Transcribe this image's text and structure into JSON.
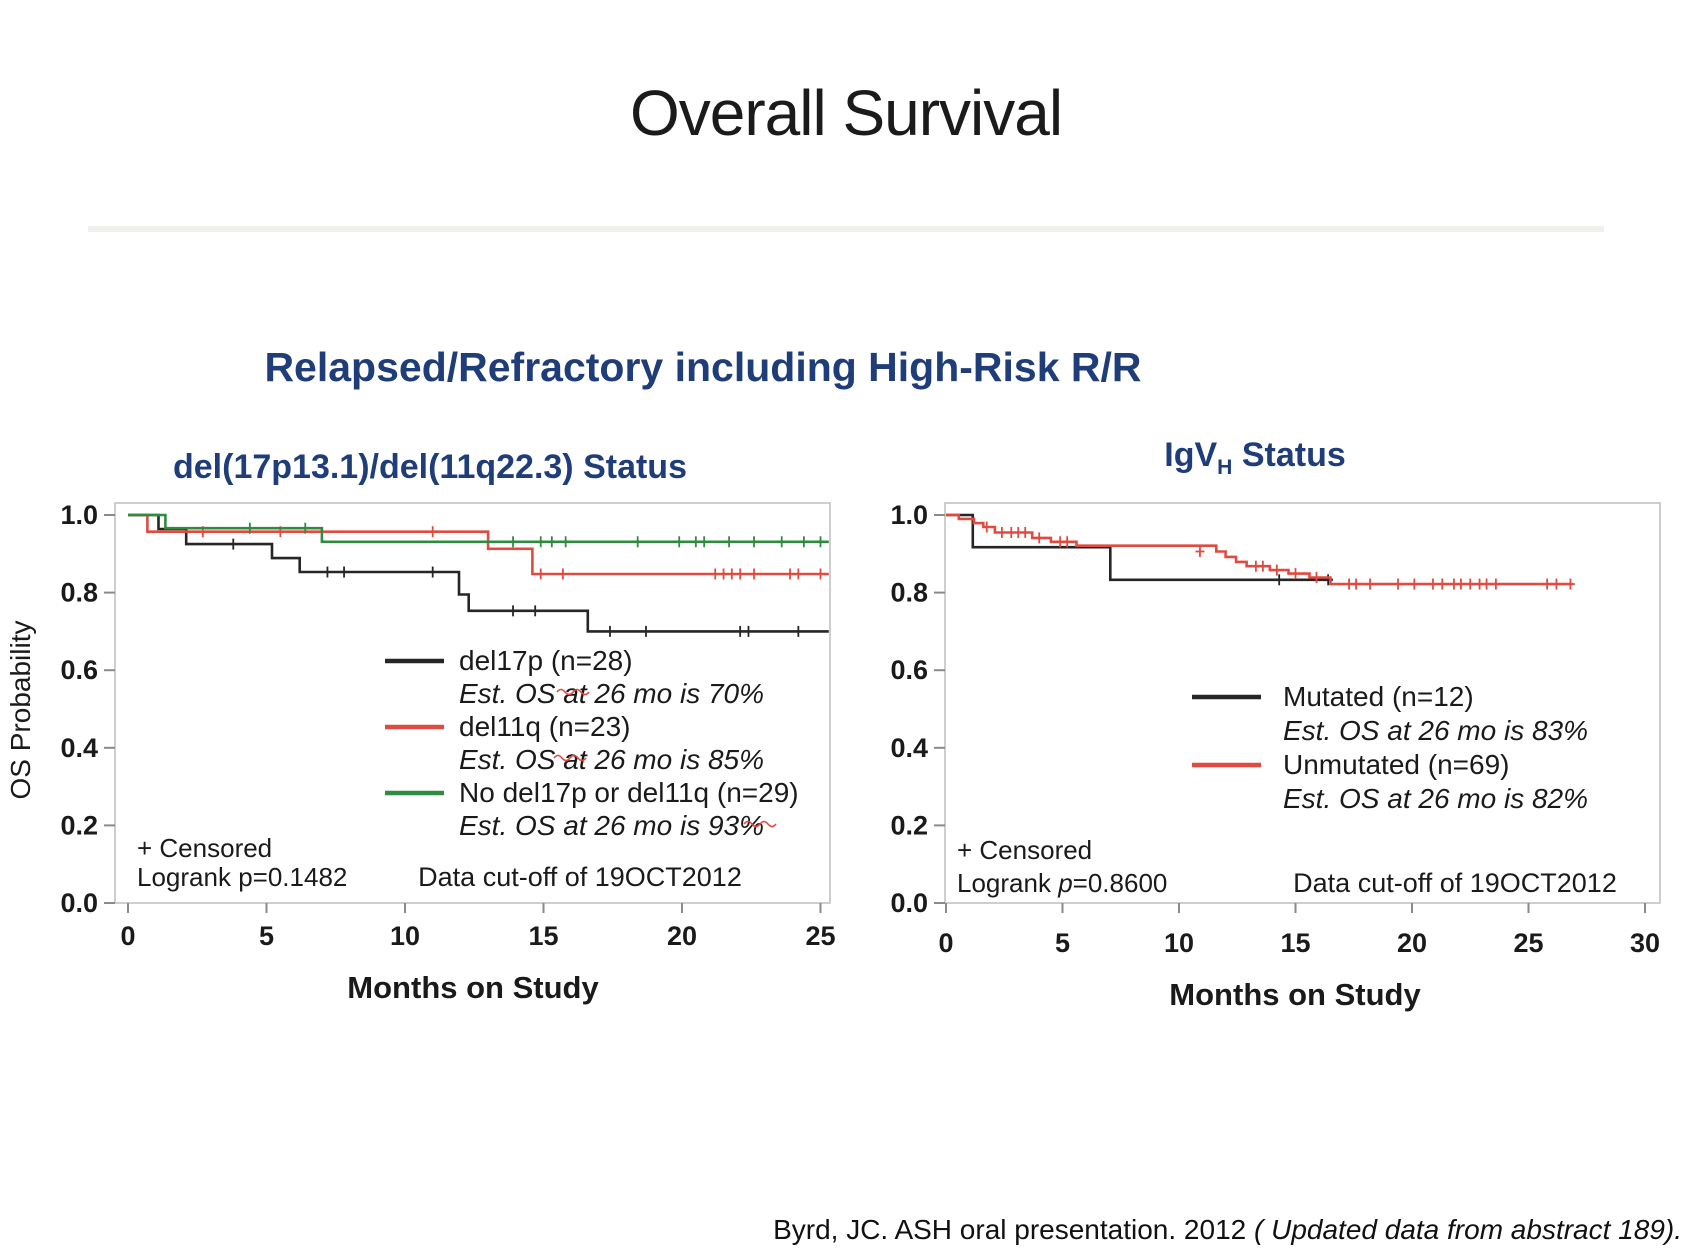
{
  "page": {
    "title": "Overall Survival",
    "header": "Relapsed/Refractory including High-Risk R/R",
    "footer": {
      "normal": "Byrd, JC. ASH oral presentation. 2012 ",
      "italic": "( Updated data from abstract 189)."
    },
    "colors": {
      "header_blue": "#1f3e79",
      "curve_black": "#262626",
      "curve_red": "#e04b41",
      "curve_green": "#2e8b3f",
      "frame_gray": "#c2c2c2",
      "tick_gray": "#8a8a8a",
      "divider": "#f1f0ec",
      "squiggle_red": "#e8453c"
    }
  },
  "chart_data": [
    {
      "type": "line",
      "variant": "kaplan-meier-step",
      "title": "del(17p13.1)/del(11q22.3) Status",
      "title_parts": {
        "pre": "del(17p13.1)/del(11q22.3) Status",
        "sub": "",
        "post": ""
      },
      "xlabel": "Months on Study",
      "ylabel": "OS Probability",
      "xlim": [
        0,
        25.8
      ],
      "ylim": [
        0,
        1.0
      ],
      "xticks": [
        0,
        5,
        10,
        15,
        20,
        25
      ],
      "ytick_labels": [
        "1.0",
        "0.8",
        "0.6",
        "0.4",
        "0.2",
        "0.0"
      ],
      "grid": false,
      "legend_position": "center-right-inside",
      "series": [
        {
          "name": "del17p (n=28)",
          "est_label": "Est. OS at 26 mo is 70%",
          "color_key": "curve_black",
          "spellcheck_squiggle": true,
          "steps": [
            [
              0,
              1.0
            ],
            [
              1.1,
              0.964
            ],
            [
              2.1,
              0.925
            ],
            [
              5.2,
              0.889
            ],
            [
              6.2,
              0.853
            ],
            [
              11.95,
              0.795
            ],
            [
              12.3,
              0.753
            ],
            [
              16.6,
              0.7
            ],
            [
              25.3,
              0.7
            ]
          ],
          "censors": [
            [
              3.8,
              0.925
            ],
            [
              7.2,
              0.853
            ],
            [
              7.8,
              0.853
            ],
            [
              11.0,
              0.853
            ],
            [
              13.9,
              0.753
            ],
            [
              14.7,
              0.753
            ],
            [
              17.4,
              0.7
            ],
            [
              18.7,
              0.7
            ],
            [
              22.1,
              0.7
            ],
            [
              22.4,
              0.7
            ],
            [
              24.2,
              0.7
            ]
          ]
        },
        {
          "name": "del11q (n=23)",
          "est_label": "Est. OS at 26 mo is 85%",
          "color_key": "curve_red",
          "spellcheck_squiggle": true,
          "steps": [
            [
              0,
              1.0
            ],
            [
              0.7,
              0.957
            ],
            [
              13.0,
              0.913
            ],
            [
              14.6,
              0.848
            ],
            [
              25.3,
              0.848
            ]
          ],
          "censors": [
            [
              2.7,
              0.957
            ],
            [
              5.5,
              0.957
            ],
            [
              11.0,
              0.957
            ],
            [
              14.9,
              0.848
            ],
            [
              15.7,
              0.848
            ],
            [
              21.2,
              0.848
            ],
            [
              21.5,
              0.848
            ],
            [
              21.8,
              0.848
            ],
            [
              22.1,
              0.848
            ],
            [
              22.6,
              0.848
            ],
            [
              23.9,
              0.848
            ],
            [
              24.2,
              0.848
            ],
            [
              25.0,
              0.848
            ]
          ]
        },
        {
          "name": "No del17p or del11q (n=29)",
          "est_label": "Est. OS at 26 mo is 93%",
          "color_key": "curve_green",
          "spellcheck_squiggle": true,
          "steps": [
            [
              0,
              1.0
            ],
            [
              1.35,
              0.966
            ],
            [
              7.0,
              0.931
            ],
            [
              25.3,
              0.931
            ]
          ],
          "censors": [
            [
              4.4,
              0.966
            ],
            [
              6.4,
              0.966
            ],
            [
              13.9,
              0.931
            ],
            [
              14.9,
              0.931
            ],
            [
              15.3,
              0.931
            ],
            [
              15.8,
              0.931
            ],
            [
              18.4,
              0.931
            ],
            [
              19.9,
              0.931
            ],
            [
              20.5,
              0.931
            ],
            [
              20.8,
              0.931
            ],
            [
              21.7,
              0.931
            ],
            [
              22.6,
              0.931
            ],
            [
              23.6,
              0.931
            ],
            [
              24.4,
              0.931
            ],
            [
              25.0,
              0.931
            ]
          ]
        }
      ],
      "notes": {
        "censored": "+ Censored",
        "logrank_prefix": "Logrank ",
        "logrank_p": "p",
        "p_italic": false,
        "logrank_value": "=0.1482",
        "cutoff": "Data cut-off of 19OCT2012"
      }
    },
    {
      "type": "line",
      "variant": "kaplan-meier-step",
      "title": "IgVH Status",
      "title_parts": {
        "pre": "IgV",
        "sub": "H",
        "post": " Status"
      },
      "xlabel": "Months on Study",
      "ylabel": "",
      "xlim": [
        0,
        27.2
      ],
      "ylim": [
        0,
        1.0
      ],
      "xticks": [
        0,
        5,
        10,
        15,
        20,
        25,
        30
      ],
      "ytick_labels": [
        "1.0",
        "0.8",
        "0.6",
        "0.4",
        "0.2",
        "0.0"
      ],
      "grid": false,
      "legend_position": "center-inside",
      "series": [
        {
          "name": "Mutated (n=12)",
          "est_label": "Est. OS at 26 mo is 83%",
          "color_key": "curve_black",
          "spellcheck_squiggle": false,
          "steps": [
            [
              0,
              1.0
            ],
            [
              1.15,
              0.917
            ],
            [
              7.05,
              0.833
            ],
            [
              16.6,
              0.833
            ]
          ],
          "censors": [
            [
              14.3,
              0.833
            ],
            [
              16.4,
              0.833
            ]
          ]
        },
        {
          "name": "Unmutated (n=69)",
          "est_label": "Est. OS at 26 mo is 82%",
          "color_key": "curve_red",
          "spellcheck_squiggle": false,
          "steps": [
            [
              0,
              1.0
            ],
            [
              0.55,
              0.99
            ],
            [
              1.2,
              0.979
            ],
            [
              1.6,
              0.969
            ],
            [
              2.1,
              0.955
            ],
            [
              3.7,
              0.941
            ],
            [
              4.5,
              0.931
            ],
            [
              5.6,
              0.921
            ],
            [
              11.6,
              0.906
            ],
            [
              12.0,
              0.892
            ],
            [
              12.45,
              0.879
            ],
            [
              12.9,
              0.868
            ],
            [
              13.9,
              0.858
            ],
            [
              14.7,
              0.849
            ],
            [
              15.6,
              0.839
            ],
            [
              16.5,
              0.822
            ],
            [
              26.9,
              0.822
            ]
          ],
          "censors": [
            [
              1.75,
              0.969
            ],
            [
              2.4,
              0.955
            ],
            [
              2.8,
              0.955
            ],
            [
              3.1,
              0.955
            ],
            [
              3.4,
              0.955
            ],
            [
              4.0,
              0.941
            ],
            [
              4.9,
              0.931
            ],
            [
              5.2,
              0.931
            ],
            [
              10.9,
              0.906
            ],
            [
              13.3,
              0.868
            ],
            [
              13.6,
              0.868
            ],
            [
              14.2,
              0.858
            ],
            [
              15.0,
              0.849
            ],
            [
              15.9,
              0.839
            ],
            [
              17.3,
              0.822
            ],
            [
              17.6,
              0.822
            ],
            [
              18.2,
              0.822
            ],
            [
              19.4,
              0.822
            ],
            [
              20.1,
              0.822
            ],
            [
              20.9,
              0.822
            ],
            [
              21.3,
              0.822
            ],
            [
              21.8,
              0.822
            ],
            [
              22.1,
              0.822
            ],
            [
              22.5,
              0.822
            ],
            [
              22.9,
              0.822
            ],
            [
              23.2,
              0.822
            ],
            [
              23.6,
              0.822
            ],
            [
              25.8,
              0.822
            ],
            [
              26.2,
              0.822
            ],
            [
              26.8,
              0.822
            ]
          ]
        }
      ],
      "notes": {
        "censored": "+ Censored",
        "logrank_prefix": "Logrank ",
        "logrank_p": "p",
        "p_italic": true,
        "logrank_value": "=0.8600",
        "cutoff": "Data cut-off of 19OCT2012"
      }
    }
  ]
}
